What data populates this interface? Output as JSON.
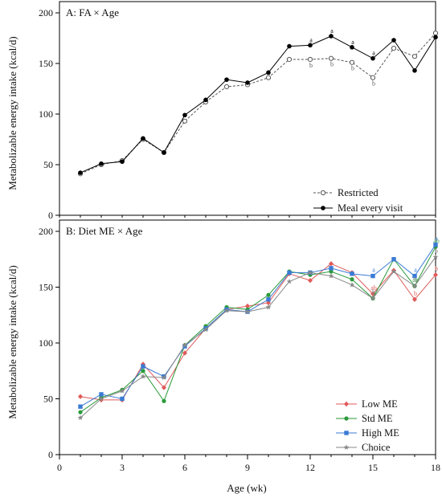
{
  "chart_data": [
    {
      "type": "line",
      "panel_label": "A: FA × Age",
      "ylabel": "Metabolizable energy intake (kcal/d)",
      "xlabel": "",
      "xlim": [
        0,
        18
      ],
      "ylim": [
        0,
        200
      ],
      "x_ticks": [
        0,
        3,
        6,
        9,
        12,
        15,
        18
      ],
      "y_ticks": [
        0,
        50,
        100,
        150,
        200
      ],
      "legend_position": "bottom-right",
      "x": [
        1,
        2,
        3,
        4,
        5,
        6,
        7,
        8,
        9,
        10,
        11,
        12,
        13,
        14,
        15,
        16,
        17,
        18
      ],
      "series": [
        {
          "name": "Restricted",
          "color": "#555555",
          "line_style": "dashed",
          "marker": "open-circle",
          "values": [
            41,
            50,
            54,
            75,
            62,
            93,
            112,
            127,
            129,
            136,
            154,
            154,
            155,
            151,
            136,
            165,
            157,
            180
          ],
          "labels": [
            "",
            "",
            "",
            "",
            "",
            "",
            "",
            "",
            "",
            "",
            "",
            "b",
            "b",
            "b",
            "b",
            "",
            "",
            ""
          ]
        },
        {
          "name": "Meal every visit",
          "color": "#000000",
          "line_style": "solid",
          "marker": "filled-circle",
          "values": [
            42,
            51,
            53,
            76,
            62,
            99,
            114,
            134,
            131,
            141,
            167,
            168,
            177,
            166,
            155,
            173,
            143,
            176
          ],
          "labels": [
            "",
            "",
            "",
            "",
            "",
            "",
            "",
            "",
            "",
            "",
            "",
            "a",
            "a",
            "a",
            "a",
            "",
            "",
            ""
          ]
        }
      ]
    },
    {
      "type": "line",
      "panel_label": "B: Diet ME × Age",
      "ylabel": "Metabolizable energy intake (kcal/d)",
      "xlabel": "Age (wk)",
      "xlim": [
        0,
        18
      ],
      "ylim": [
        0,
        200
      ],
      "x_ticks": [
        0,
        3,
        6,
        9,
        12,
        15,
        18
      ],
      "y_ticks": [
        0,
        50,
        100,
        150,
        200
      ],
      "legend_position": "bottom-right",
      "x": [
        1,
        2,
        3,
        4,
        5,
        6,
        7,
        8,
        9,
        10,
        11,
        12,
        13,
        14,
        15,
        16,
        17,
        18
      ],
      "series": [
        {
          "name": "Low ME",
          "color": "#e05a5a",
          "marker": "diamond",
          "values": [
            52,
            49,
            49,
            81,
            60,
            91,
            113,
            130,
            133,
            136,
            162,
            156,
            171,
            163,
            144,
            165,
            139,
            161
          ],
          "labels": [
            "",
            "",
            "",
            "",
            "",
            "",
            "",
            "",
            "",
            "",
            "",
            "",
            "",
            "",
            "ab",
            "",
            "b",
            "b"
          ]
        },
        {
          "name": "Std ME",
          "color": "#2a9a3a",
          "marker": "circle",
          "values": [
            38,
            51,
            58,
            75,
            48,
            98,
            115,
            132,
            130,
            143,
            164,
            161,
            164,
            157,
            140,
            175,
            151,
            186
          ],
          "labels": [
            "",
            "",
            "",
            "",
            "",
            "",
            "",
            "",
            "",
            "",
            "",
            "",
            "",
            "",
            "b",
            "",
            "ab",
            "ab"
          ]
        },
        {
          "name": "High ME",
          "color": "#3a7bd5",
          "marker": "square",
          "values": [
            43,
            54,
            50,
            79,
            70,
            97,
            113,
            130,
            128,
            139,
            163,
            163,
            167,
            162,
            160,
            175,
            160,
            188
          ],
          "labels": [
            "",
            "",
            "",
            "",
            "",
            "",
            "",
            "",
            "",
            "",
            "",
            "",
            "",
            "",
            "a",
            "",
            "a",
            "a"
          ]
        },
        {
          "name": "Choice",
          "color": "#888888",
          "marker": "star",
          "values": [
            33,
            50,
            57,
            70,
            69,
            98,
            112,
            129,
            128,
            132,
            155,
            163,
            160,
            152,
            140,
            164,
            151,
            177
          ],
          "labels": [
            "",
            "",
            "",
            "",
            "",
            "",
            "",
            "",
            "",
            "",
            "",
            "",
            "",
            "",
            "b",
            "",
            "b",
            "b"
          ]
        }
      ]
    }
  ]
}
